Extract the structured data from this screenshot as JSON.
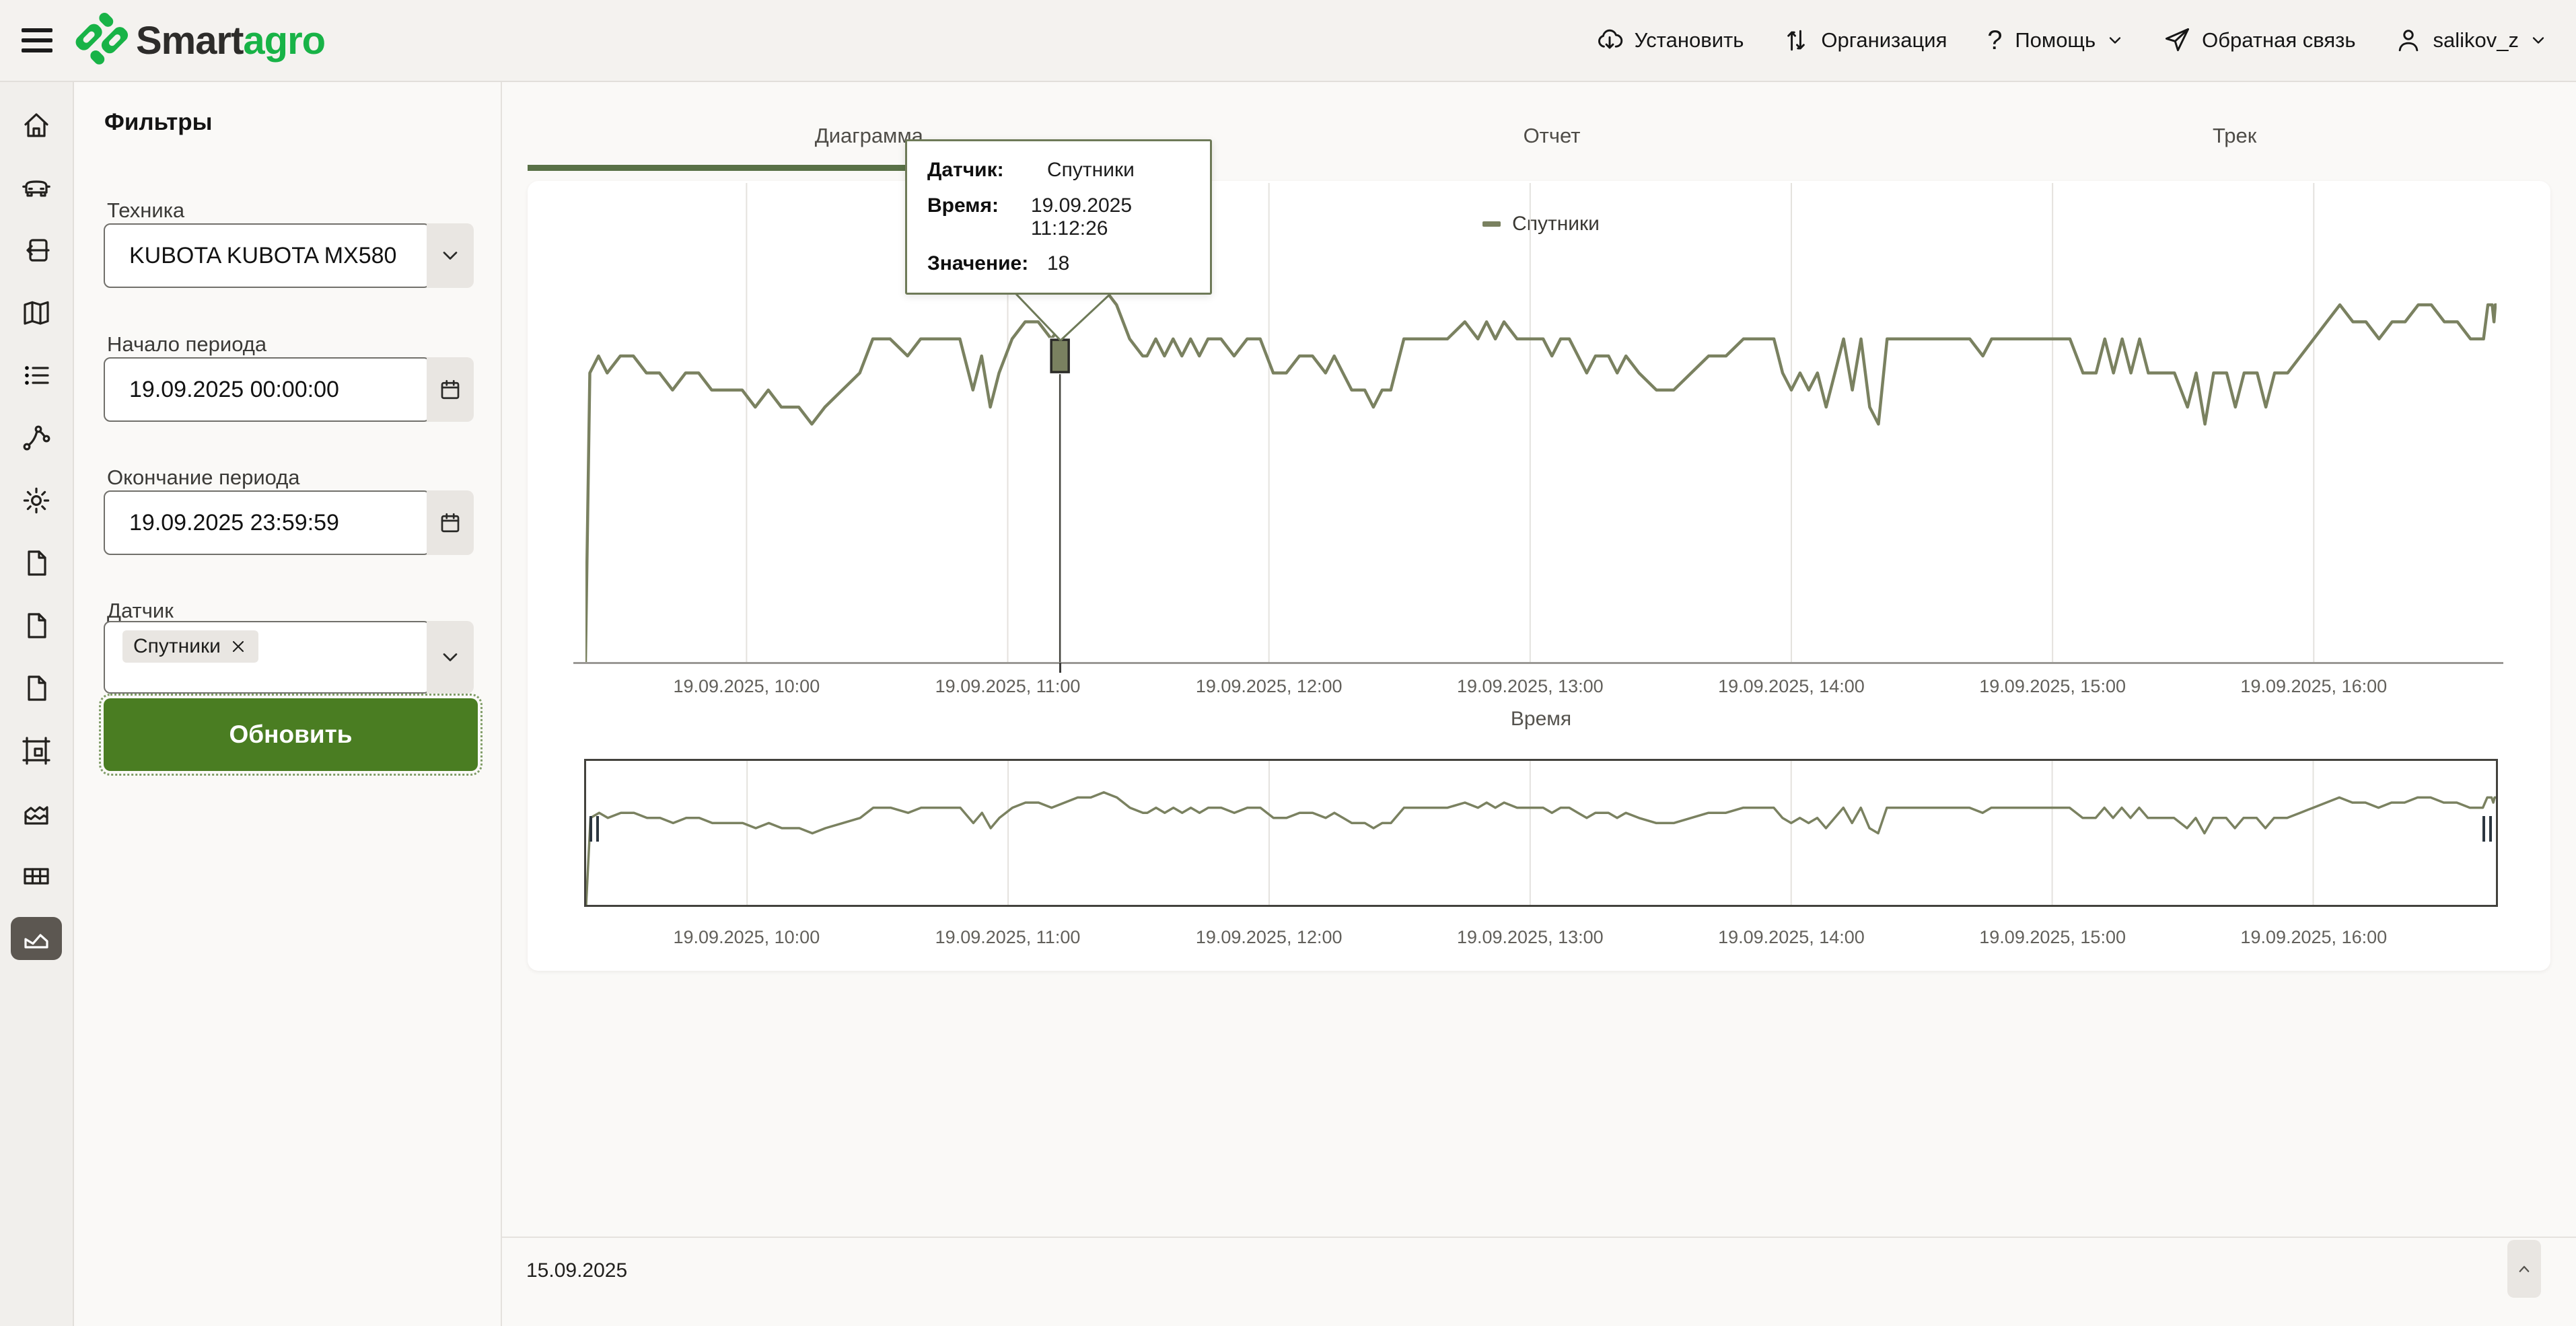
{
  "topbar": {
    "brand": {
      "part1": "Smart",
      "part2": "agro"
    },
    "menu": [
      {
        "label": "Установить",
        "icon": "cloud-download"
      },
      {
        "label": "Организация",
        "icon": "sync-arrows"
      },
      {
        "label": "Помощь",
        "icon": "question-mark",
        "chevron": true
      },
      {
        "label": "Обратная связь",
        "icon": "paper-plane"
      },
      {
        "label": "salikov_z",
        "icon": "user",
        "chevron": true
      }
    ]
  },
  "sidebar": {
    "items": [
      {
        "name": "home"
      },
      {
        "name": "vehicles"
      },
      {
        "name": "import"
      },
      {
        "name": "map"
      },
      {
        "name": "list"
      },
      {
        "name": "network"
      },
      {
        "name": "settings"
      },
      {
        "name": "document-1"
      },
      {
        "name": "document-2"
      },
      {
        "name": "document-3"
      },
      {
        "name": "frame"
      },
      {
        "name": "area-chart"
      },
      {
        "name": "table"
      },
      {
        "name": "line-chart",
        "active": true
      }
    ]
  },
  "filters": {
    "title": "Фильтры",
    "tech_label": "Техника",
    "tech_value": "KUBOTA KUBOTA MX580",
    "period_start_label": "Начало периода",
    "period_start_value": "19.09.2025 00:00:00",
    "period_end_label": "Окончание периода",
    "period_end_value": "19.09.2025 23:59:59",
    "sensor_label": "Датчик",
    "sensor_chip": "Спутники",
    "refresh_label": "Обновить"
  },
  "tabs": [
    {
      "label": "Диаграмма",
      "active": true
    },
    {
      "label": "Отчет",
      "active": false
    },
    {
      "label": "Трек",
      "active": false
    }
  ],
  "tooltip": {
    "rows": [
      {
        "label": "Датчик:",
        "value": "Спутники"
      },
      {
        "label": "Время:",
        "value": "19.09.2025 11:12:26"
      },
      {
        "label": "Значение:",
        "value": "18"
      }
    ]
  },
  "footer": {
    "date": "15.09.2025"
  },
  "theme": {
    "line_color": "#7a8160",
    "tab_underline": "#597147",
    "button_green": "#4a7d22",
    "logo_green": "#18b347",
    "active_rail_bg": "#5c5751",
    "grid_color": "#e4e2de",
    "tooltip_border": "#6e7a58",
    "crosshair_color": "#45453f"
  },
  "chart_data": {
    "type": "line",
    "title": "",
    "xlabel": "Время",
    "ylabel": "",
    "grid": "vertical",
    "legend_position": "top-center",
    "x_domain_minutes": [
      563,
      1002
    ],
    "y_domain": [
      0,
      28.15
    ],
    "x_ticks": [
      {
        "t": 600,
        "label": "19.09.2025, 10:00"
      },
      {
        "t": 660,
        "label": "19.09.2025, 11:00"
      },
      {
        "t": 720,
        "label": "19.09.2025, 12:00"
      },
      {
        "t": 780,
        "label": "19.09.2025, 13:00"
      },
      {
        "t": 840,
        "label": "19.09.2025, 14:00"
      },
      {
        "t": 900,
        "label": "19.09.2025, 15:00"
      },
      {
        "t": 960,
        "label": "19.09.2025, 16:00"
      }
    ],
    "crosshair": {
      "t": 672,
      "value": 18,
      "time_label": "19.09.2025 11:12:26"
    },
    "navigator": {
      "enabled": true,
      "brush_range_minutes": [
        563,
        1002
      ]
    },
    "series": [
      {
        "name": "Спутники",
        "color": "#7a8160",
        "points": [
          [
            563,
            0
          ],
          [
            564,
            17
          ],
          [
            566,
            18
          ],
          [
            568,
            17
          ],
          [
            571,
            18
          ],
          [
            574,
            18
          ],
          [
            577,
            17
          ],
          [
            580,
            17
          ],
          [
            583,
            16
          ],
          [
            586,
            17
          ],
          [
            589,
            17
          ],
          [
            592,
            16
          ],
          [
            595,
            16
          ],
          [
            599,
            16
          ],
          [
            602,
            15
          ],
          [
            605,
            16
          ],
          [
            608,
            15
          ],
          [
            612,
            15
          ],
          [
            615,
            14
          ],
          [
            618,
            15
          ],
          [
            622,
            16
          ],
          [
            626,
            17
          ],
          [
            629,
            19
          ],
          [
            633,
            19
          ],
          [
            637,
            18
          ],
          [
            640,
            19
          ],
          [
            645,
            19
          ],
          [
            649,
            19
          ],
          [
            652,
            16
          ],
          [
            654,
            18
          ],
          [
            656,
            15
          ],
          [
            658,
            17
          ],
          [
            661,
            19
          ],
          [
            664,
            20
          ],
          [
            667,
            20
          ],
          [
            670,
            19
          ],
          [
            673,
            20
          ],
          [
            676,
            21
          ],
          [
            679,
            21
          ],
          [
            682,
            22
          ],
          [
            685,
            21
          ],
          [
            688,
            19
          ],
          [
            691,
            18
          ],
          [
            692,
            18
          ],
          [
            694,
            19
          ],
          [
            696,
            18
          ],
          [
            698,
            19
          ],
          [
            700,
            18
          ],
          [
            702,
            19
          ],
          [
            704,
            18
          ],
          [
            706,
            19
          ],
          [
            709,
            19
          ],
          [
            712,
            18
          ],
          [
            715,
            19
          ],
          [
            718,
            19
          ],
          [
            721,
            17
          ],
          [
            724,
            17
          ],
          [
            727,
            18
          ],
          [
            730,
            18
          ],
          [
            733,
            17
          ],
          [
            735,
            18
          ],
          [
            737,
            17
          ],
          [
            739,
            16
          ],
          [
            742,
            16
          ],
          [
            744,
            15
          ],
          [
            746,
            16
          ],
          [
            748,
            16
          ],
          [
            751,
            19
          ],
          [
            756,
            19
          ],
          [
            761,
            19
          ],
          [
            765,
            20
          ],
          [
            768,
            19
          ],
          [
            770,
            20
          ],
          [
            772,
            19
          ],
          [
            774,
            20
          ],
          [
            777,
            19
          ],
          [
            780,
            19
          ],
          [
            783,
            19
          ],
          [
            785,
            18
          ],
          [
            787,
            19
          ],
          [
            789,
            19
          ],
          [
            791,
            18
          ],
          [
            793,
            17
          ],
          [
            795,
            18
          ],
          [
            798,
            18
          ],
          [
            800,
            17
          ],
          [
            802,
            18
          ],
          [
            805,
            17
          ],
          [
            809,
            16
          ],
          [
            813,
            16
          ],
          [
            817,
            17
          ],
          [
            821,
            18
          ],
          [
            825,
            18
          ],
          [
            829,
            19
          ],
          [
            833,
            19
          ],
          [
            836,
            19
          ],
          [
            838,
            17
          ],
          [
            840,
            16
          ],
          [
            842,
            17
          ],
          [
            844,
            16
          ],
          [
            846,
            17
          ],
          [
            848,
            15
          ],
          [
            850,
            17
          ],
          [
            852,
            19
          ],
          [
            854,
            16
          ],
          [
            856,
            19
          ],
          [
            858,
            15
          ],
          [
            860,
            14
          ],
          [
            862,
            19
          ],
          [
            866,
            19
          ],
          [
            871,
            19
          ],
          [
            876,
            19
          ],
          [
            881,
            19
          ],
          [
            884,
            18
          ],
          [
            886,
            19
          ],
          [
            891,
            19
          ],
          [
            896,
            19
          ],
          [
            901,
            19
          ],
          [
            904,
            19
          ],
          [
            907,
            17
          ],
          [
            910,
            17
          ],
          [
            912,
            19
          ],
          [
            914,
            17
          ],
          [
            916,
            19
          ],
          [
            918,
            17
          ],
          [
            920,
            19
          ],
          [
            922,
            17
          ],
          [
            925,
            17
          ],
          [
            928,
            17
          ],
          [
            931,
            15
          ],
          [
            933,
            17
          ],
          [
            935,
            14
          ],
          [
            937,
            17
          ],
          [
            940,
            17
          ],
          [
            942,
            15
          ],
          [
            944,
            17
          ],
          [
            947,
            17
          ],
          [
            949,
            15
          ],
          [
            951,
            17
          ],
          [
            954,
            17
          ],
          [
            957,
            18
          ],
          [
            960,
            19
          ],
          [
            963,
            20
          ],
          [
            966,
            21
          ],
          [
            969,
            20
          ],
          [
            972,
            20
          ],
          [
            975,
            19
          ],
          [
            978,
            20
          ],
          [
            981,
            20
          ],
          [
            984,
            21
          ],
          [
            987,
            21
          ],
          [
            990,
            20
          ],
          [
            993,
            20
          ],
          [
            996,
            19
          ],
          [
            999,
            19
          ],
          [
            1000,
            21
          ],
          [
            1001,
            21
          ],
          [
            1001.4,
            20
          ],
          [
            1001.7,
            21
          ],
          [
            1002,
            21
          ]
        ]
      }
    ]
  }
}
